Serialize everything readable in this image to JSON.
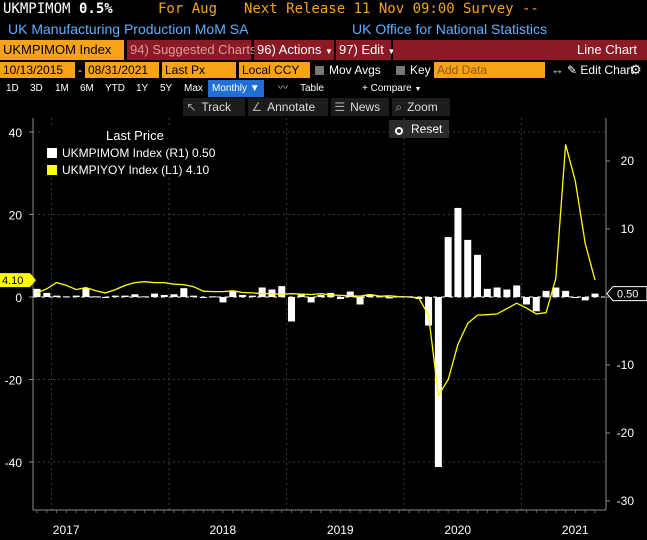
{
  "header": {
    "ticker": "UKMPIMOM",
    "value": "0.5%",
    "for_label": "For Aug",
    "next_release": "Next Release 11 Nov 09:00",
    "survey": "Survey --",
    "name": "UK Manufacturing Production MoM SA",
    "source": "UK Office for National Statistics"
  },
  "toolbar": {
    "security": "UKMPIMOM Index",
    "suggested": "94) Suggested Charts",
    "actions": "96) Actions",
    "edit": "97) Edit",
    "chart_type": "Line Chart"
  },
  "controls": {
    "start_date": "10/13/2015",
    "dash": "-",
    "end_date": "08/31/2021",
    "field": "Last Px",
    "currency": "Local CCY",
    "mov_avgs": "Mov Avgs",
    "key_events": "Key Events",
    "add_data_placeholder": "Add Data",
    "edit_chart": "Edit Chart"
  },
  "periods": [
    "1D",
    "3D",
    "1M",
    "6M",
    "YTD",
    "1Y",
    "5Y",
    "Max"
  ],
  "frequency": "Monthly",
  "table_label": "Table",
  "compare": "+ Compare",
  "tools": {
    "track": "Track",
    "annotate": "Annotate",
    "news": "News",
    "zoom": "Zoom",
    "reset": "Reset"
  },
  "colors": {
    "accent_orange": "#f6a21a",
    "maroon": "#8b1a24",
    "series_white": "#ffffff",
    "series_yellow": "#ffff00",
    "selected_blue": "#1f6fd6"
  },
  "chart_data": {
    "type": "bar+line",
    "legend_title": "Last Price",
    "legend_placement": "top-left",
    "x_years": [
      "2017",
      "2018",
      "2019",
      "2020",
      "2021"
    ],
    "series": [
      {
        "name": "UKMPIMOM Index (R1)",
        "last_value": "0.50",
        "type": "bar",
        "axis": "right",
        "color": "#ffffff",
        "x": [
          "2016-11",
          "2016-12",
          "2017-01",
          "2017-02",
          "2017-03",
          "2017-04",
          "2017-05",
          "2017-06",
          "2017-07",
          "2017-08",
          "2017-09",
          "2017-10",
          "2017-11",
          "2017-12",
          "2018-01",
          "2018-02",
          "2018-03",
          "2018-04",
          "2018-05",
          "2018-06",
          "2018-07",
          "2018-08",
          "2018-09",
          "2018-10",
          "2018-11",
          "2018-12",
          "2019-01",
          "2019-02",
          "2019-03",
          "2019-04",
          "2019-05",
          "2019-06",
          "2019-07",
          "2019-08",
          "2019-09",
          "2019-10",
          "2019-11",
          "2019-12",
          "2020-01",
          "2020-02",
          "2020-03",
          "2020-04",
          "2020-05",
          "2020-06",
          "2020-07",
          "2020-08",
          "2020-09",
          "2020-10",
          "2020-11",
          "2020-12",
          "2021-01",
          "2021-02",
          "2021-03",
          "2021-04",
          "2021-05",
          "2021-06",
          "2021-07",
          "2021-08"
        ],
        "values": [
          1.2,
          0.6,
          0.2,
          0.1,
          0.2,
          1.3,
          0.1,
          0.0,
          0.2,
          0.2,
          0.4,
          0.1,
          0.5,
          0.3,
          0.4,
          1.3,
          0.2,
          0.0,
          0.1,
          -0.8,
          0.9,
          0.3,
          0.2,
          1.4,
          1.1,
          1.6,
          -3.6,
          0.5,
          -0.8,
          0.3,
          0.6,
          -0.3,
          0.8,
          -1.1,
          0.4,
          0.1,
          -0.2,
          0.1,
          0.1,
          -0.3,
          -4.2,
          -25.0,
          8.8,
          13.1,
          8.4,
          6.2,
          1.2,
          1.4,
          1.1,
          1.7,
          -1.1,
          -2.1,
          0.9,
          1.4,
          0.9,
          0.0,
          -0.5,
          0.5
        ]
      },
      {
        "name": "UKMPIYOY Index (L1)",
        "last_value": "4.10",
        "type": "line",
        "axis": "left",
        "color": "#ffff00",
        "x": [
          "2016-11",
          "2016-12",
          "2017-01",
          "2017-02",
          "2017-03",
          "2017-04",
          "2017-05",
          "2017-06",
          "2017-07",
          "2017-08",
          "2017-09",
          "2017-10",
          "2017-11",
          "2017-12",
          "2018-01",
          "2018-02",
          "2018-03",
          "2018-04",
          "2018-05",
          "2018-06",
          "2018-07",
          "2018-08",
          "2018-09",
          "2018-10",
          "2018-11",
          "2018-12",
          "2019-01",
          "2019-02",
          "2019-03",
          "2019-04",
          "2019-05",
          "2019-06",
          "2019-07",
          "2019-08",
          "2019-09",
          "2019-10",
          "2019-11",
          "2019-12",
          "2020-01",
          "2020-02",
          "2020-03",
          "2020-04",
          "2020-05",
          "2020-06",
          "2020-07",
          "2020-08",
          "2020-09",
          "2020-10",
          "2020-11",
          "2020-12",
          "2021-01",
          "2021-02",
          "2021-03",
          "2021-04",
          "2021-05",
          "2021-06",
          "2021-07",
          "2021-08"
        ],
        "values": [
          1.0,
          2.0,
          3.5,
          2.8,
          1.8,
          2.3,
          1.5,
          1.0,
          1.8,
          2.8,
          3.5,
          3.7,
          3.5,
          3.5,
          3.1,
          3.0,
          2.5,
          1.4,
          1.3,
          1.3,
          1.5,
          1.1,
          1.0,
          0.8,
          0.8,
          0.7,
          0.8,
          0.7,
          0.6,
          0.8,
          0.5,
          0.4,
          0.3,
          0.2,
          0.6,
          0.2,
          0.3,
          0.1,
          0.0,
          -0.2,
          -4.5,
          -23.9,
          -20.0,
          -11.5,
          -6.4,
          -4.4,
          -4.3,
          -4.1,
          -2.8,
          -1.5,
          -2.7,
          -4.1,
          -3.8,
          4.5,
          37.0,
          28.0,
          13.0,
          4.1
        ]
      }
    ],
    "left_axis": {
      "ticks": [
        40,
        20,
        0,
        -20,
        -40
      ],
      "range": [
        -50,
        45
      ]
    },
    "right_axis": {
      "ticks": [
        20,
        10,
        0,
        -10,
        -20,
        -30
      ],
      "range": [
        -30,
        27
      ]
    },
    "grid": true
  }
}
